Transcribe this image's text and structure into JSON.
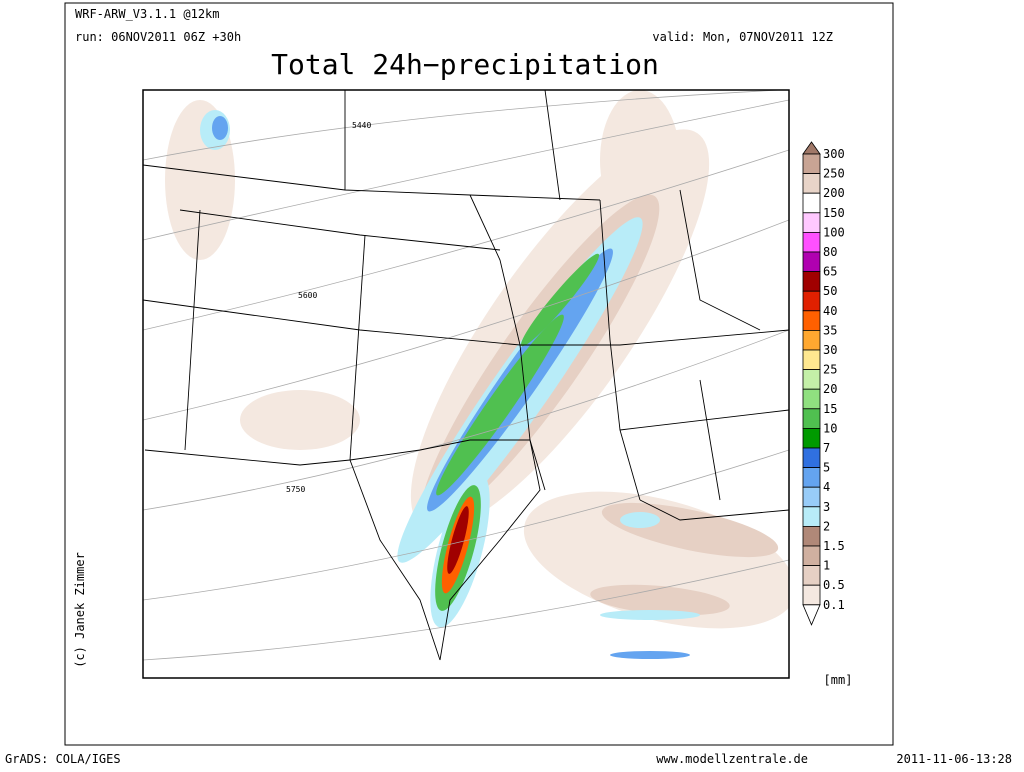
{
  "header": {
    "model": "WRF-ARW_V3.1.1 @12km",
    "run": "run: 06NOV2011 06Z +30h",
    "valid": "valid: Mon, 07NOV2011 12Z",
    "title": "Total 24h−precipitation"
  },
  "map": {
    "contour_labels": [
      "5440",
      "5600",
      "5750"
    ],
    "copyright": "(c) Janek Zimmer"
  },
  "colorbar": {
    "levels": [
      "300",
      "250",
      "200",
      "150",
      "100",
      "80",
      "65",
      "50",
      "40",
      "35",
      "30",
      "25",
      "20",
      "15",
      "10",
      "7",
      "5",
      "4",
      "3",
      "2",
      "1.5",
      "1",
      "0.5",
      "0.1"
    ],
    "colors": [
      "#a07868",
      "#c8a494",
      "#e8d4c8",
      "#ffffff",
      "#ffc8ff",
      "#ff50ff",
      "#b000b0",
      "#a00000",
      "#e02000",
      "#ff6000",
      "#ffa830",
      "#ffe890",
      "#c4f0a8",
      "#90e080",
      "#50c050",
      "#009a00",
      "#3070e0",
      "#64a4f0",
      "#98ccf8",
      "#b8ecf8",
      "#b08878",
      "#d0b0a0",
      "#e6d0c4",
      "#f4e8e0",
      "#ffffff"
    ],
    "unit": "[mm]"
  },
  "footer": {
    "left": "GrADS: COLA/IGES",
    "center": "www.modellzentrale.de",
    "right": "2011-11-06-13:28"
  }
}
